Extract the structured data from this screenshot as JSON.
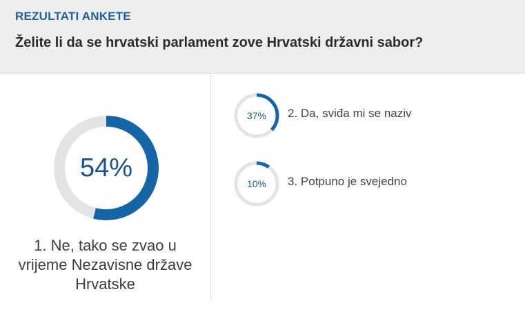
{
  "header": {
    "kicker": "REZULTATI ANKETE",
    "question": "Želite li da se hrvatski parlament zove Hrvatski državni sabor?"
  },
  "results": [
    {
      "percent_label": "54%",
      "percent": 54,
      "label_lines": [
        "1. Ne, tako se zvao u",
        "vrijeme Nezavisne države",
        "Hrvatske"
      ]
    },
    {
      "percent_label": "37%",
      "percent": 37,
      "label": "2. Da, sviđa mi se naziv"
    },
    {
      "percent_label": "10%",
      "percent": 10,
      "label": "3. Potpuno je svejedno"
    }
  ],
  "colors": {
    "accent": "#1565a7",
    "track": "#e4e4e4",
    "header_bg": "#eeeeee"
  }
}
